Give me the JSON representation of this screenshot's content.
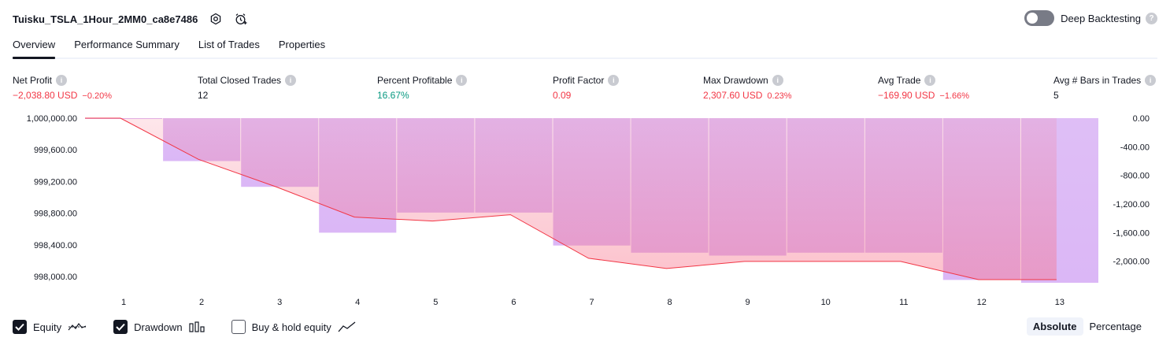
{
  "header": {
    "strategy_name": "Tuisku_TSLA_1Hour_2MM0_ca8e7486",
    "deep_backtesting_label": "Deep Backtesting",
    "deep_backtesting_enabled": false
  },
  "tabs": [
    {
      "label": "Overview",
      "active": true
    },
    {
      "label": "Performance Summary",
      "active": false
    },
    {
      "label": "List of Trades",
      "active": false
    },
    {
      "label": "Properties",
      "active": false
    }
  ],
  "metrics": {
    "net_profit": {
      "label": "Net Profit",
      "value": "−2,038.80 USD",
      "pct": "−0.20%"
    },
    "total_closed_trades": {
      "label": "Total Closed Trades",
      "value": "12"
    },
    "percent_profitable": {
      "label": "Percent Profitable",
      "value": "16.67%"
    },
    "profit_factor": {
      "label": "Profit Factor",
      "value": "0.09"
    },
    "max_drawdown": {
      "label": "Max Drawdown",
      "value": "2,307.60 USD",
      "pct": "0.23%"
    },
    "avg_trade": {
      "label": "Avg Trade",
      "value": "−169.90 USD",
      "pct": "−1.66%"
    },
    "avg_bars": {
      "label": "Avg # Bars in Trades",
      "value": "5"
    }
  },
  "chart_data": {
    "type": "line",
    "x": [
      1,
      2,
      3,
      4,
      5,
      6,
      7,
      8,
      9,
      10,
      11,
      12,
      13
    ],
    "x_tick_labels": [
      "1",
      "2",
      "3",
      "4",
      "5",
      "6",
      "7",
      "8",
      "9",
      "10",
      "11",
      "12",
      "13"
    ],
    "left_axis": {
      "ticks": [
        "1,000,000.00",
        "999,600.00",
        "999,200.00",
        "998,800.00",
        "998,400.00",
        "998,000.00"
      ],
      "tick_values": [
        1000000,
        999600,
        999200,
        998800,
        998400,
        998000
      ],
      "ylim": [
        997920,
        1000000
      ]
    },
    "right_axis": {
      "ticks": [
        "0.00",
        "-400.00",
        "-800.00",
        "-1,200.00",
        "-1,600.00",
        "-2,000.00"
      ],
      "tick_values": [
        0,
        -400,
        -800,
        -1200,
        -1600,
        -2000
      ],
      "ylim": [
        -2300,
        0
      ]
    },
    "series": [
      {
        "name": "Equity",
        "color": "#f23645",
        "values": [
          1000000,
          999480,
          999130,
          998750,
          998700,
          998780,
          998230,
          998100,
          998190,
          998190,
          998190,
          997960,
          997960
        ]
      },
      {
        "name": "Drawdown",
        "color": "#d9b3f5",
        "values": [
          -10,
          -600,
          -960,
          -1600,
          -1320,
          -1320,
          -1780,
          -1880,
          -1920,
          -1880,
          -1880,
          -2260,
          -2300
        ]
      }
    ],
    "grid": false
  },
  "legend": {
    "equity": {
      "label": "Equity",
      "checked": true
    },
    "drawdown": {
      "label": "Drawdown",
      "checked": true
    },
    "buy_hold": {
      "label": "Buy & hold equity",
      "checked": false
    }
  },
  "mode": {
    "absolute_label": "Absolute",
    "percentage_label": "Percentage",
    "selected": "Absolute"
  },
  "colors": {
    "negative": "#f23645",
    "positive": "#089981",
    "drawdown_bar": "#d9b3f5",
    "equity_fill": "#f7768e"
  }
}
